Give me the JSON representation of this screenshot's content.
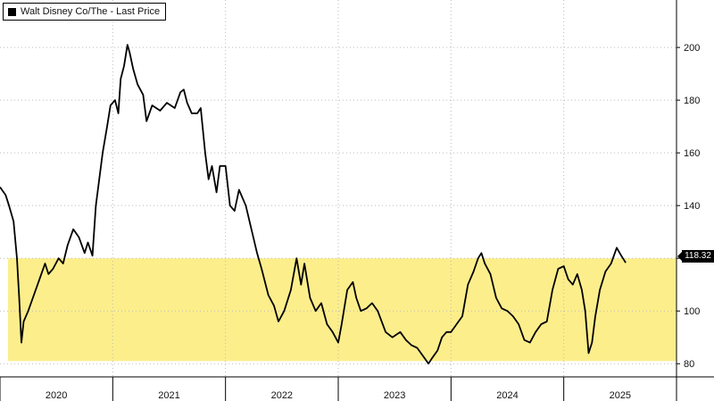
{
  "chart_data": {
    "type": "line",
    "title": "",
    "legend": {
      "label": "Walt Disney Co/The - Last Price",
      "color": "#000000",
      "position": "top-left"
    },
    "last_price_label": "118.32",
    "highlight_band": {
      "y_from": 81,
      "y_to": 120,
      "color": "#fdee8c"
    },
    "x_labels": [
      "2020",
      "2021",
      "2022",
      "2023",
      "2024",
      "2025"
    ],
    "y_ticks": [
      80,
      100,
      120,
      140,
      160,
      180,
      200
    ],
    "y_range": [
      75,
      218
    ],
    "x_range": [
      2020.0,
      2026.0
    ],
    "grid": true,
    "series": [
      {
        "color": "#000000",
        "points": [
          [
            2020.0,
            147
          ],
          [
            2020.05,
            144
          ],
          [
            2020.08,
            140
          ],
          [
            2020.12,
            134
          ],
          [
            2020.15,
            120
          ],
          [
            2020.17,
            105
          ],
          [
            2020.19,
            88
          ],
          [
            2020.21,
            96
          ],
          [
            2020.25,
            100
          ],
          [
            2020.3,
            106
          ],
          [
            2020.35,
            112
          ],
          [
            2020.4,
            118
          ],
          [
            2020.43,
            114
          ],
          [
            2020.47,
            116
          ],
          [
            2020.52,
            120
          ],
          [
            2020.56,
            118
          ],
          [
            2020.6,
            125
          ],
          [
            2020.65,
            131
          ],
          [
            2020.7,
            128
          ],
          [
            2020.75,
            122
          ],
          [
            2020.78,
            126
          ],
          [
            2020.82,
            121
          ],
          [
            2020.85,
            140
          ],
          [
            2020.88,
            150
          ],
          [
            2020.91,
            160
          ],
          [
            2020.95,
            170
          ],
          [
            2020.98,
            178
          ],
          [
            2021.02,
            180
          ],
          [
            2021.05,
            175
          ],
          [
            2021.07,
            188
          ],
          [
            2021.1,
            193
          ],
          [
            2021.13,
            201
          ],
          [
            2021.15,
            198
          ],
          [
            2021.18,
            192
          ],
          [
            2021.22,
            186
          ],
          [
            2021.27,
            182
          ],
          [
            2021.3,
            172
          ],
          [
            2021.35,
            178
          ],
          [
            2021.42,
            176
          ],
          [
            2021.48,
            179
          ],
          [
            2021.55,
            177
          ],
          [
            2021.6,
            183
          ],
          [
            2021.63,
            184
          ],
          [
            2021.66,
            179
          ],
          [
            2021.7,
            175
          ],
          [
            2021.75,
            175
          ],
          [
            2021.78,
            177
          ],
          [
            2021.82,
            160
          ],
          [
            2021.85,
            150
          ],
          [
            2021.88,
            155
          ],
          [
            2021.92,
            145
          ],
          [
            2021.95,
            155
          ],
          [
            2022.0,
            155
          ],
          [
            2022.04,
            140
          ],
          [
            2022.08,
            138
          ],
          [
            2022.12,
            146
          ],
          [
            2022.18,
            140
          ],
          [
            2022.23,
            131
          ],
          [
            2022.28,
            122
          ],
          [
            2022.32,
            116
          ],
          [
            2022.38,
            106
          ],
          [
            2022.43,
            102
          ],
          [
            2022.47,
            96
          ],
          [
            2022.52,
            100
          ],
          [
            2022.58,
            108
          ],
          [
            2022.63,
            120
          ],
          [
            2022.67,
            110
          ],
          [
            2022.7,
            118
          ],
          [
            2022.75,
            105
          ],
          [
            2022.8,
            100
          ],
          [
            2022.85,
            103
          ],
          [
            2022.9,
            95
          ],
          [
            2022.95,
            92
          ],
          [
            2023.0,
            88
          ],
          [
            2023.03,
            95
          ],
          [
            2023.08,
            108
          ],
          [
            2023.13,
            111
          ],
          [
            2023.16,
            105
          ],
          [
            2023.2,
            100
          ],
          [
            2023.25,
            101
          ],
          [
            2023.3,
            103
          ],
          [
            2023.35,
            100
          ],
          [
            2023.42,
            92
          ],
          [
            2023.48,
            90
          ],
          [
            2023.55,
            92
          ],
          [
            2023.6,
            89
          ],
          [
            2023.65,
            87
          ],
          [
            2023.7,
            86
          ],
          [
            2023.75,
            83
          ],
          [
            2023.8,
            80
          ],
          [
            2023.83,
            82
          ],
          [
            2023.88,
            85
          ],
          [
            2023.92,
            90
          ],
          [
            2023.96,
            92
          ],
          [
            2024.0,
            92
          ],
          [
            2024.05,
            95
          ],
          [
            2024.1,
            98
          ],
          [
            2024.15,
            110
          ],
          [
            2024.2,
            115
          ],
          [
            2024.24,
            120
          ],
          [
            2024.27,
            122
          ],
          [
            2024.3,
            118
          ],
          [
            2024.35,
            114
          ],
          [
            2024.4,
            105
          ],
          [
            2024.45,
            101
          ],
          [
            2024.5,
            100
          ],
          [
            2024.55,
            98
          ],
          [
            2024.6,
            95
          ],
          [
            2024.65,
            89
          ],
          [
            2024.7,
            88
          ],
          [
            2024.75,
            92
          ],
          [
            2024.8,
            95
          ],
          [
            2024.85,
            96
          ],
          [
            2024.9,
            108
          ],
          [
            2024.95,
            116
          ],
          [
            2025.0,
            117
          ],
          [
            2025.04,
            112
          ],
          [
            2025.08,
            110
          ],
          [
            2025.12,
            114
          ],
          [
            2025.16,
            108
          ],
          [
            2025.19,
            100
          ],
          [
            2025.22,
            84
          ],
          [
            2025.25,
            88
          ],
          [
            2025.28,
            98
          ],
          [
            2025.32,
            108
          ],
          [
            2025.37,
            115
          ],
          [
            2025.42,
            118
          ],
          [
            2025.47,
            124
          ],
          [
            2025.51,
            121
          ],
          [
            2025.55,
            118.32
          ]
        ]
      }
    ]
  }
}
